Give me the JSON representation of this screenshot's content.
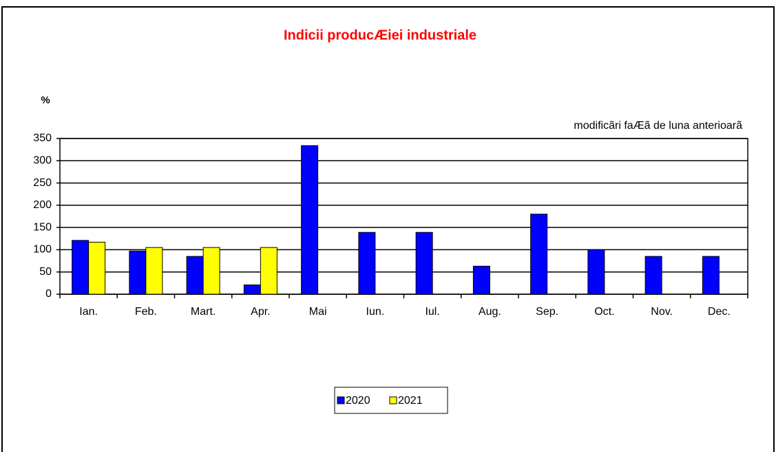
{
  "chart_data": {
    "type": "bar",
    "title": "Indicii producÆiei industriale",
    "y_label": "%",
    "annotation": "modificãri faÆã de luna anterioarã",
    "categories": [
      "Ian.",
      "Feb.",
      "Mart.",
      "Apr.",
      "Mai",
      "Iun.",
      "Iul.",
      "Aug.",
      "Sep.",
      "Oct.",
      "Nov.",
      "Dec."
    ],
    "series": [
      {
        "name": "2020",
        "color": "#0000ff",
        "values": [
          121,
          97,
          85,
          21,
          334,
          139,
          139,
          63,
          180,
          100,
          85,
          85
        ]
      },
      {
        "name": "2021",
        "color": "#ffff00",
        "values": [
          117,
          105,
          105,
          105,
          null,
          null,
          null,
          null,
          null,
          null,
          null,
          null
        ]
      }
    ],
    "ylim": [
      0,
      350
    ],
    "yticks": [
      0,
      50,
      100,
      150,
      200,
      250,
      300,
      350
    ],
    "grid": true,
    "legend": "bottom"
  }
}
